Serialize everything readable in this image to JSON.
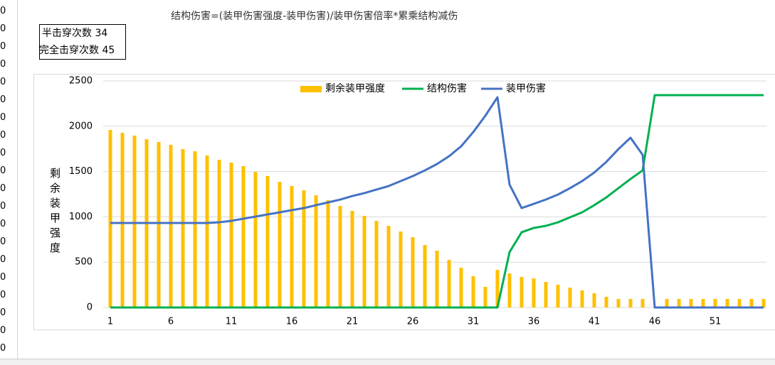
{
  "sheet": {
    "formula": "结构伤害=(装甲伤害强度-装甲伤害)/装甲伤害倍率*累乘结构减伤",
    "counts": [
      {
        "label": "半击穿次数",
        "value": 34
      },
      {
        "label": "完全击穿次数",
        "value": 45
      }
    ],
    "cells": [
      0,
      0,
      0,
      0,
      0,
      0,
      0,
      0,
      0,
      0,
      0,
      0,
      0,
      0,
      0,
      0,
      0,
      0,
      0,
      0
    ]
  },
  "chart_data": {
    "type": "bar",
    "y_label": "剩余装甲强度",
    "categories": [
      1,
      null,
      null,
      null,
      null,
      6,
      null,
      null,
      null,
      null,
      11,
      null,
      null,
      null,
      null,
      16,
      null,
      null,
      null,
      null,
      21,
      null,
      null,
      null,
      null,
      26,
      null,
      null,
      null,
      null,
      31,
      null,
      null,
      null,
      null,
      36,
      null,
      null,
      null,
      null,
      41,
      null,
      null,
      null,
      null,
      46,
      null,
      null,
      null,
      null,
      51,
      null,
      null,
      null,
      null
    ],
    "ylim": [
      0,
      2500
    ],
    "yticks": [
      0,
      500,
      1000,
      1500,
      2000,
      2500
    ],
    "grid": true,
    "legend": "top",
    "series": [
      {
        "name": "剩余装甲强度",
        "type": "bar",
        "color": "#ffc000",
        "values": [
          1960,
          1928,
          1897,
          1857,
          1826,
          1795,
          1748,
          1724,
          1677,
          1630,
          1599,
          1560,
          1497,
          1450,
          1387,
          1340,
          1293,
          1238,
          1183,
          1121,
          1066,
          1011,
          956,
          901,
          839,
          776,
          690,
          627,
          525,
          439,
          345,
          227,
          415,
          376,
          337,
          321,
          282,
          251,
          219,
          188,
          157,
          118,
          94,
          94,
          94,
          0,
          94,
          94,
          94,
          94,
          94,
          94,
          94,
          94,
          94
        ]
      },
      {
        "name": "结构伤害",
        "type": "line",
        "color": "#00b050",
        "values": [
          0,
          0,
          0,
          0,
          0,
          0,
          0,
          0,
          0,
          0,
          0,
          0,
          0,
          0,
          0,
          0,
          0,
          0,
          0,
          0,
          0,
          0,
          0,
          0,
          0,
          0,
          0,
          0,
          0,
          0,
          0,
          0,
          0,
          611,
          830,
          878,
          901,
          940,
          995,
          1050,
          1129,
          1215,
          1317,
          1418,
          1513,
          2343,
          2343,
          2343,
          2343,
          2343,
          2343,
          2343,
          2343,
          2343,
          2343
        ]
      },
      {
        "name": "装甲伤害",
        "type": "line",
        "color": "#4472c4",
        "values": [
          933,
          933,
          933,
          933,
          933,
          933,
          933,
          933,
          933,
          940,
          956,
          980,
          1003,
          1027,
          1050,
          1074,
          1097,
          1129,
          1160,
          1191,
          1230,
          1262,
          1301,
          1340,
          1395,
          1450,
          1513,
          1583,
          1669,
          1779,
          1936,
          2116,
          2320,
          1356,
          1097,
          1144,
          1191,
          1246,
          1317,
          1395,
          1489,
          1607,
          1748,
          1873,
          1685,
          0,
          0,
          0,
          0,
          0,
          0,
          0,
          0,
          0,
          0
        ]
      }
    ]
  }
}
